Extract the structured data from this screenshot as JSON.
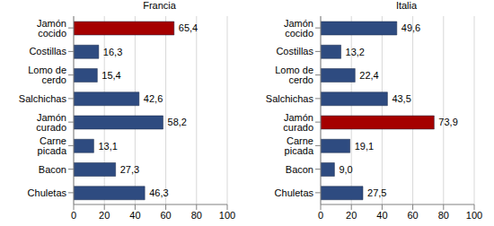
{
  "chart_data": [
    {
      "type": "bar",
      "title": "Francia",
      "orientation": "horizontal",
      "categories": [
        "Jamón cocido",
        "Costillas",
        "Lomo de cerdo",
        "Salchichas",
        "Jamón curado",
        "Carne picada",
        "Bacon",
        "Chuletas"
      ],
      "values": [
        65.4,
        16.3,
        15.4,
        42.6,
        58.2,
        13.1,
        27.3,
        46.3
      ],
      "value_labels": [
        "65,4",
        "16,3",
        "15,4",
        "42,6",
        "58,2",
        "13,1",
        "27,3",
        "46,3"
      ],
      "colors": [
        "#a50000",
        "#2e4b80",
        "#2e4b80",
        "#2e4b80",
        "#2e4b80",
        "#2e4b80",
        "#2e4b80",
        "#2e4b80"
      ],
      "xlim": [
        0,
        100
      ],
      "xticks": [
        0,
        20,
        40,
        60,
        80,
        100
      ],
      "grid": true,
      "data_labels": true
    },
    {
      "type": "bar",
      "title": "Italia",
      "orientation": "horizontal",
      "categories": [
        "Jamón cocido",
        "Costillas",
        "Lomo de cerdo",
        "Salchichas",
        "Jamón curado",
        "Carne picada",
        "Bacon",
        "Chuletas"
      ],
      "values": [
        49.6,
        13.2,
        22.4,
        43.5,
        73.9,
        19.1,
        9.0,
        27.5
      ],
      "value_labels": [
        "49,6",
        "13,2",
        "22,4",
        "43,5",
        "73,9",
        "19,1",
        "9,0",
        "27,5"
      ],
      "colors": [
        "#2e4b80",
        "#2e4b80",
        "#2e4b80",
        "#2e4b80",
        "#a50000",
        "#2e4b80",
        "#2e4b80",
        "#2e4b80"
      ],
      "xlim": [
        0,
        100
      ],
      "xticks": [
        0,
        20,
        40,
        60,
        80,
        100
      ],
      "grid": true,
      "data_labels": true
    }
  ]
}
